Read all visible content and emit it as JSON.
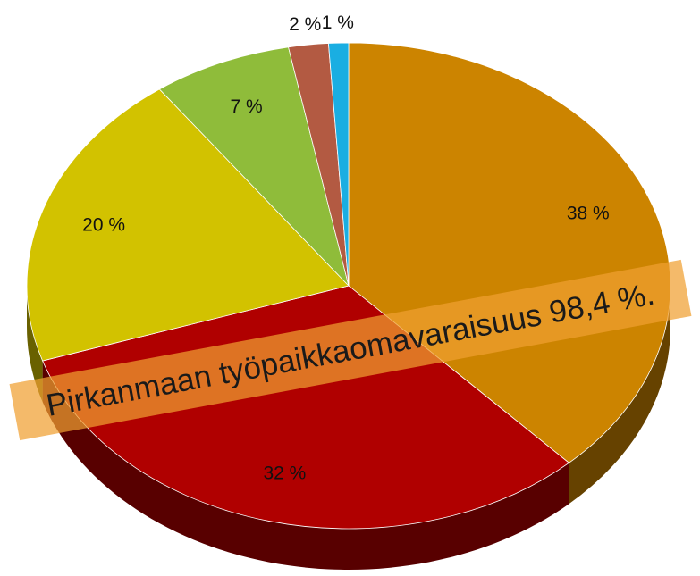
{
  "chart_data": {
    "type": "pie",
    "values": [
      38,
      32,
      20,
      7,
      2,
      1
    ],
    "value_labels": [
      "38 %",
      "32 %",
      "20 %",
      "7 %",
      "2 %",
      "1 %"
    ],
    "colors": [
      "#cc8400",
      "#b00000",
      "#d2c200",
      "#8fbc3a",
      "#b35a42",
      "#1aaee2"
    ],
    "annotation": "Pirkanmaan työpaikkaomavaraisuus 98,4 %."
  }
}
